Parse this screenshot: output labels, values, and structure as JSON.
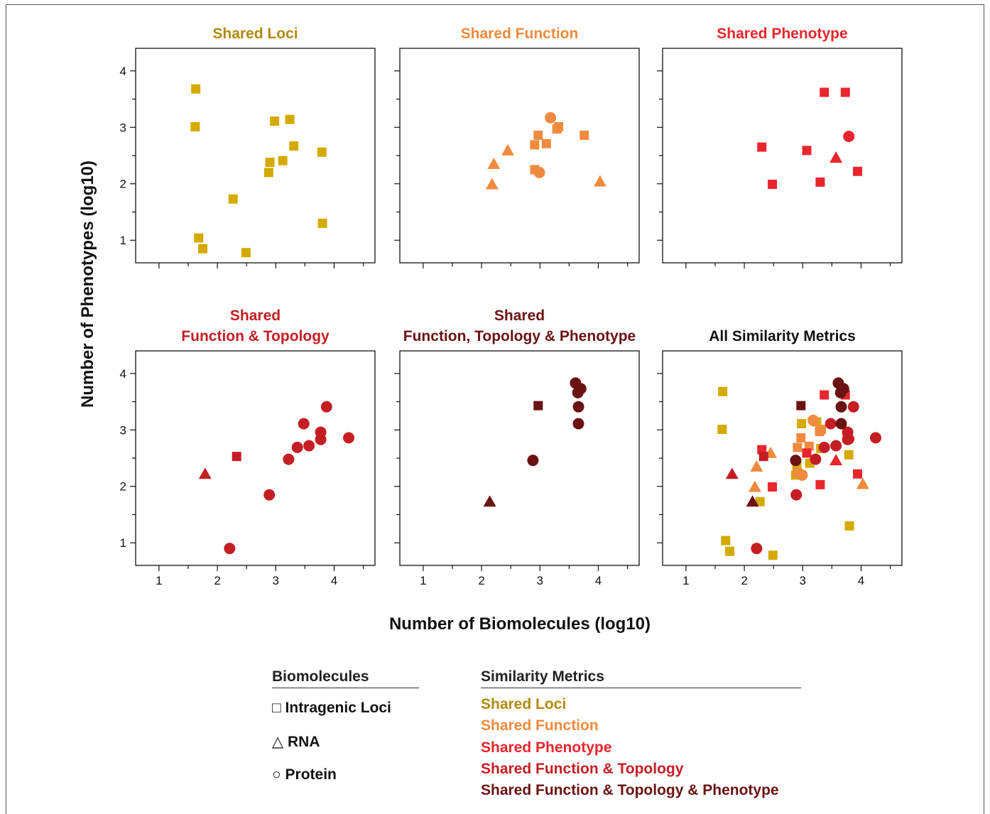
{
  "figure": {
    "ylabel": "Number of Phenotypes (log10)",
    "xlabel": "Number of Biomolecules (log10)"
  },
  "colors": {
    "loci": "#d4aa00",
    "function": "#f08a3e",
    "phenotype": "#e8262d",
    "function_topology": "#c41e24",
    "ftp": "#6b1212",
    "all": "#111111"
  },
  "title_colors": {
    "loci": "#b08a0e",
    "function": "#f08a3e",
    "phenotype": "#e8262d",
    "function_topology": "#c41e24",
    "ftp": "#6b1212",
    "all": "#111111"
  },
  "chart_data": [
    {
      "type": "scatter",
      "title": "Shared Loci",
      "title_lines": [
        "Shared Loci"
      ],
      "metric": "loci",
      "xlim": [
        0.6,
        4.7
      ],
      "ylim": [
        0.6,
        4.4
      ],
      "xticks": [
        1,
        2,
        3,
        4
      ],
      "yticks": [
        1,
        2,
        3,
        4
      ],
      "show_xticklabels": false,
      "show_yticklabels": true,
      "points": [
        {
          "x": 1.63,
          "y": 3.68,
          "shape": "square"
        },
        {
          "x": 1.62,
          "y": 3.01,
          "shape": "square"
        },
        {
          "x": 2.98,
          "y": 3.11,
          "shape": "square"
        },
        {
          "x": 3.24,
          "y": 3.14,
          "shape": "square"
        },
        {
          "x": 3.31,
          "y": 2.67,
          "shape": "square"
        },
        {
          "x": 3.79,
          "y": 2.56,
          "shape": "square"
        },
        {
          "x": 2.9,
          "y": 2.38,
          "shape": "square"
        },
        {
          "x": 3.12,
          "y": 2.41,
          "shape": "square"
        },
        {
          "x": 2.88,
          "y": 2.2,
          "shape": "square"
        },
        {
          "x": 2.27,
          "y": 1.73,
          "shape": "square"
        },
        {
          "x": 3.8,
          "y": 1.3,
          "shape": "square"
        },
        {
          "x": 1.68,
          "y": 1.04,
          "shape": "square"
        },
        {
          "x": 1.75,
          "y": 0.85,
          "shape": "square"
        },
        {
          "x": 2.49,
          "y": 0.78,
          "shape": "square"
        }
      ]
    },
    {
      "type": "scatter",
      "title": "Shared Function",
      "title_lines": [
        "Shared Function"
      ],
      "metric": "function",
      "xlim": [
        0.6,
        4.7
      ],
      "ylim": [
        0.6,
        4.4
      ],
      "xticks": [
        1,
        2,
        3,
        4
      ],
      "yticks": [
        1,
        2,
        3,
        4
      ],
      "show_xticklabels": false,
      "show_yticklabels": false,
      "points": [
        {
          "x": 3.18,
          "y": 3.17,
          "shape": "circle"
        },
        {
          "x": 3.32,
          "y": 3.01,
          "shape": "square"
        },
        {
          "x": 3.29,
          "y": 2.97,
          "shape": "square"
        },
        {
          "x": 2.97,
          "y": 2.86,
          "shape": "square"
        },
        {
          "x": 3.76,
          "y": 2.86,
          "shape": "square"
        },
        {
          "x": 3.11,
          "y": 2.71,
          "shape": "square"
        },
        {
          "x": 2.91,
          "y": 2.69,
          "shape": "square"
        },
        {
          "x": 2.45,
          "y": 2.59,
          "shape": "triangle"
        },
        {
          "x": 2.21,
          "y": 2.35,
          "shape": "triangle"
        },
        {
          "x": 2.91,
          "y": 2.25,
          "shape": "square"
        },
        {
          "x": 2.99,
          "y": 2.2,
          "shape": "circle"
        },
        {
          "x": 2.18,
          "y": 1.99,
          "shape": "triangle"
        },
        {
          "x": 4.03,
          "y": 2.04,
          "shape": "triangle"
        }
      ]
    },
    {
      "type": "scatter",
      "title": "Shared Phenotype",
      "title_lines": [
        "Shared Phenotype"
      ],
      "metric": "phenotype",
      "xlim": [
        0.6,
        4.7
      ],
      "ylim": [
        0.6,
        4.4
      ],
      "xticks": [
        1,
        2,
        3,
        4
      ],
      "yticks": [
        1,
        2,
        3,
        4
      ],
      "show_xticklabels": false,
      "show_yticklabels": false,
      "points": [
        {
          "x": 3.37,
          "y": 3.62,
          "shape": "square"
        },
        {
          "x": 3.73,
          "y": 3.62,
          "shape": "square"
        },
        {
          "x": 3.79,
          "y": 2.84,
          "shape": "circle"
        },
        {
          "x": 2.3,
          "y": 2.65,
          "shape": "square"
        },
        {
          "x": 3.07,
          "y": 2.59,
          "shape": "square"
        },
        {
          "x": 3.57,
          "y": 2.46,
          "shape": "triangle"
        },
        {
          "x": 3.94,
          "y": 2.22,
          "shape": "square"
        },
        {
          "x": 2.48,
          "y": 1.99,
          "shape": "square"
        },
        {
          "x": 3.3,
          "y": 2.03,
          "shape": "square"
        }
      ]
    },
    {
      "type": "scatter",
      "title": "Shared Function & Topology",
      "title_lines": [
        "Shared",
        "Function & Topology"
      ],
      "metric": "function_topology",
      "xlim": [
        0.6,
        4.7
      ],
      "ylim": [
        0.6,
        4.4
      ],
      "xticks": [
        1,
        2,
        3,
        4
      ],
      "yticks": [
        1,
        2,
        3,
        4
      ],
      "show_xticklabels": true,
      "show_yticklabels": true,
      "points": [
        {
          "x": 3.87,
          "y": 3.41,
          "shape": "circle"
        },
        {
          "x": 3.48,
          "y": 3.11,
          "shape": "circle"
        },
        {
          "x": 3.77,
          "y": 2.96,
          "shape": "circle"
        },
        {
          "x": 4.25,
          "y": 2.86,
          "shape": "circle"
        },
        {
          "x": 3.77,
          "y": 2.83,
          "shape": "circle"
        },
        {
          "x": 3.57,
          "y": 2.72,
          "shape": "circle"
        },
        {
          "x": 3.37,
          "y": 2.69,
          "shape": "circle"
        },
        {
          "x": 2.33,
          "y": 2.53,
          "shape": "square"
        },
        {
          "x": 3.22,
          "y": 2.48,
          "shape": "circle"
        },
        {
          "x": 1.79,
          "y": 2.22,
          "shape": "triangle"
        },
        {
          "x": 2.89,
          "y": 1.85,
          "shape": "circle"
        },
        {
          "x": 2.21,
          "y": 0.9,
          "shape": "circle"
        }
      ]
    },
    {
      "type": "scatter",
      "title": "Shared Function, Topology & Phenotype",
      "title_lines": [
        "Shared",
        "Function, Topology & Phenotype"
      ],
      "metric": "ftp",
      "xlim": [
        0.6,
        4.7
      ],
      "ylim": [
        0.6,
        4.4
      ],
      "xticks": [
        1,
        2,
        3,
        4
      ],
      "yticks": [
        1,
        2,
        3,
        4
      ],
      "show_xticklabels": true,
      "show_yticklabels": false,
      "points": [
        {
          "x": 3.61,
          "y": 3.83,
          "shape": "circle"
        },
        {
          "x": 3.7,
          "y": 3.73,
          "shape": "circle"
        },
        {
          "x": 3.65,
          "y": 3.66,
          "shape": "circle"
        },
        {
          "x": 2.97,
          "y": 3.43,
          "shape": "square"
        },
        {
          "x": 3.66,
          "y": 3.41,
          "shape": "circle"
        },
        {
          "x": 3.66,
          "y": 3.11,
          "shape": "circle"
        },
        {
          "x": 2.88,
          "y": 2.46,
          "shape": "circle"
        },
        {
          "x": 2.14,
          "y": 1.73,
          "shape": "triangle"
        }
      ]
    },
    {
      "type": "scatter",
      "title": "All Similarity Metrics",
      "title_lines": [
        "All Similarity Metrics"
      ],
      "metric": "all",
      "combined": true,
      "xlim": [
        0.6,
        4.7
      ],
      "ylim": [
        0.6,
        4.4
      ],
      "xticks": [
        1,
        2,
        3,
        4
      ],
      "yticks": [
        1,
        2,
        3,
        4
      ],
      "show_xticklabels": true,
      "show_yticklabels": false,
      "points": []
    }
  ],
  "legend": {
    "biomolecules_title": "Biomolecules",
    "biomolecules": [
      {
        "symbol": "□",
        "label": "Intragenic Loci"
      },
      {
        "symbol": "△",
        "label": "RNA"
      },
      {
        "symbol": "○",
        "label": "Protein"
      }
    ],
    "metrics_title": "Similarity Metrics",
    "metrics": [
      {
        "label": "Shared Loci",
        "color": "#b08a0e"
      },
      {
        "label": "Shared Function",
        "color": "#f08a3e"
      },
      {
        "label": "Shared Phenotype",
        "color": "#e8262d"
      },
      {
        "label": "Shared Function & Topology",
        "color": "#c41e24"
      },
      {
        "label": "Shared Function & Topology & Phenotype",
        "color": "#6b1212"
      }
    ]
  }
}
